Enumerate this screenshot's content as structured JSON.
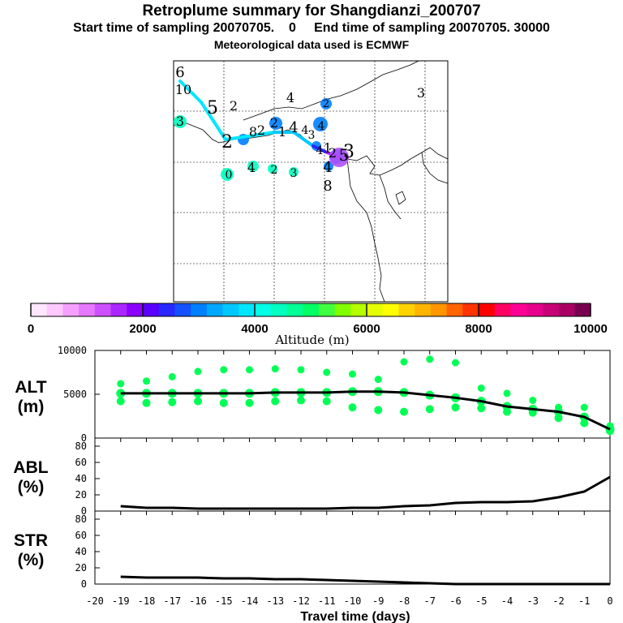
{
  "title": "Retroplume summary for Shangdianzi_200707",
  "subtitle": "Start time of sampling 20070705.    0     End time of sampling 20070705. 30000",
  "met_line": "Meteorological data used is ECMWF",
  "chart_data": [
    {
      "type": "map",
      "name": "retroplume-trajectory-map",
      "color_field": "Altitude (m)",
      "trajectory_points": [
        {
          "alt": 3900,
          "label": "6"
        },
        {
          "alt": 3900,
          "label": "5"
        },
        {
          "alt": 3800,
          "label": "4"
        },
        {
          "alt": 3800,
          "label": "3"
        },
        {
          "alt": 3700,
          "label": "2"
        },
        {
          "alt": 3700,
          "label": "1"
        },
        {
          "alt": 2400,
          "label": "1"
        },
        {
          "alt": 1500,
          "label": "0"
        }
      ],
      "map_labels": [
        "6",
        "10",
        "5",
        "2",
        "3",
        "4",
        "2",
        "3",
        "2",
        "8",
        "2",
        "2",
        "1",
        "4",
        "4",
        "3",
        "4",
        "1",
        "2",
        "5",
        "3",
        "4",
        "4",
        "2",
        "3",
        "0",
        "8",
        "4"
      ]
    },
    {
      "type": "colorbar",
      "name": "altitude-colorbar",
      "label": "Altitude (m)",
      "range": [
        0,
        10000
      ],
      "tick_labels": [
        "0",
        "2000",
        "4000",
        "6000",
        "8000",
        "10000"
      ],
      "colors": [
        "#ffe6ff",
        "#ffc8ff",
        "#f5a0ff",
        "#e678ff",
        "#cc50ff",
        "#aa28ff",
        "#8c00ff",
        "#5a00ff",
        "#2828ff",
        "#1450ff",
        "#0080ff",
        "#00a8ff",
        "#00c8ff",
        "#00e6ff",
        "#00ffe6",
        "#00ffc0",
        "#00ff96",
        "#00ff64",
        "#40ff40",
        "#80ff00",
        "#b4ff00",
        "#e6ff00",
        "#ffff00",
        "#ffd200",
        "#ffb400",
        "#ff9600",
        "#ff6400",
        "#ff3200",
        "#ff0000",
        "#ff0064",
        "#ff0096",
        "#e6008c",
        "#c80078",
        "#aa0064",
        "#780050"
      ]
    },
    {
      "type": "line",
      "name": "alt-panel",
      "ylabel": "ALT\n(m)",
      "ylim": [
        0,
        10000
      ],
      "yticks": [
        "0",
        "5000",
        "10000"
      ],
      "x": [
        -19,
        -18,
        -17,
        -16,
        -15,
        -14,
        -13,
        -12,
        -11,
        -10,
        -9,
        -8,
        -7,
        -6,
        -5,
        -4,
        -3,
        -2,
        -1,
        0
      ],
      "mean": [
        5100,
        5100,
        5100,
        5100,
        5100,
        5100,
        5200,
        5200,
        5200,
        5300,
        5300,
        5200,
        4900,
        4600,
        4200,
        3600,
        3300,
        3000,
        2400,
        1000
      ],
      "upper": [
        6200,
        6500,
        7000,
        7600,
        7800,
        7800,
        7900,
        7800,
        7500,
        7300,
        6700,
        8700,
        9000,
        8600,
        5700,
        5100,
        4300,
        3500,
        3500,
        1400
      ],
      "lower": [
        4200,
        4000,
        4100,
        4200,
        4000,
        4000,
        4200,
        4300,
        4200,
        3500,
        3200,
        3000,
        3300,
        3500,
        3400,
        3000,
        2900,
        2300,
        1700,
        800
      ],
      "color": "#00ff55"
    },
    {
      "type": "line",
      "name": "abl-panel",
      "ylabel": "ABL\n(%)",
      "ylim": [
        0,
        90
      ],
      "yticks": [
        "0",
        "20",
        "40",
        "60",
        "80"
      ],
      "x": [
        -19,
        -18,
        -17,
        -16,
        -15,
        -14,
        -13,
        -12,
        -11,
        -10,
        -9,
        -8,
        -7,
        -6,
        -5,
        -4,
        -3,
        -2,
        -1,
        0
      ],
      "values": [
        6,
        4,
        4,
        3,
        3,
        3,
        3,
        3,
        3,
        4,
        4,
        6,
        7,
        10,
        11,
        11,
        12,
        17,
        24,
        42
      ]
    },
    {
      "type": "line",
      "name": "str-panel",
      "ylabel": "STR\n(%)",
      "ylim": [
        0,
        90
      ],
      "yticks": [
        "0",
        "20",
        "40",
        "60",
        "80"
      ],
      "x": [
        -19,
        -18,
        -17,
        -16,
        -15,
        -14,
        -13,
        -12,
        -11,
        -10,
        -9,
        -8,
        -7,
        -6,
        -5,
        -4,
        -3,
        -2,
        -1,
        0
      ],
      "values": [
        9,
        8,
        8,
        8,
        7,
        7,
        6,
        6,
        5,
        4,
        3,
        2,
        1,
        0,
        0,
        0,
        0,
        0,
        0,
        0
      ],
      "xlabel": "Travel time (days)",
      "xticks": [
        "-20",
        "-19",
        "-18",
        "-17",
        "-16",
        "-15",
        "-14",
        "-13",
        "-12",
        "-11",
        "-10",
        "-9",
        "-8",
        "-7",
        "-6",
        "-5",
        "-4",
        "-3",
        "-2",
        "-1",
        "0"
      ]
    }
  ]
}
